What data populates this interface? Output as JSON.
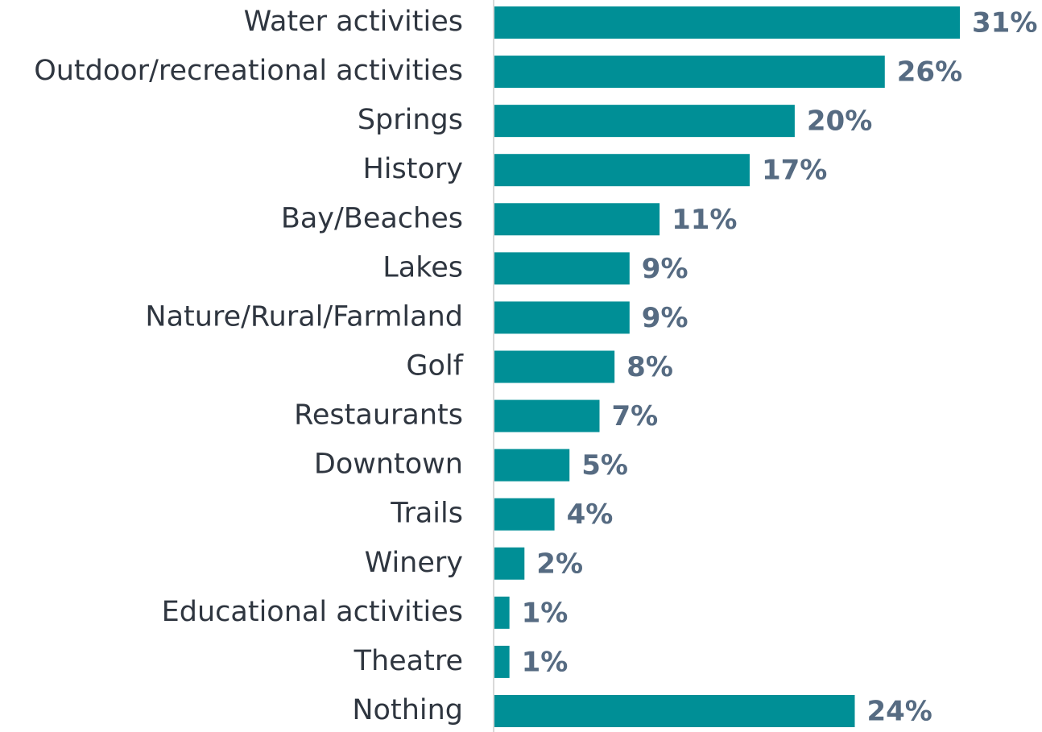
{
  "chart_data": {
    "type": "barh",
    "categories": [
      "Water activities",
      "Outdoor/recreational activities",
      "Springs",
      "History",
      "Bay/Beaches",
      "Lakes",
      "Nature/Rural/Farmland",
      "Golf",
      "Restaurants",
      "Downtown",
      "Trails",
      "Winery",
      "Educational activities",
      "Theatre",
      "Nothing"
    ],
    "values": [
      31,
      26,
      20,
      17,
      11,
      9,
      9,
      8,
      7,
      5,
      4,
      2,
      1,
      1,
      24
    ],
    "value_labels": [
      "31%",
      "26%",
      "20%",
      "17%",
      "11%",
      "9%",
      "9%",
      "8%",
      "7%",
      "5%",
      "4%",
      "2%",
      "1%",
      "1%",
      "24%"
    ],
    "color": "#008f96"
  }
}
